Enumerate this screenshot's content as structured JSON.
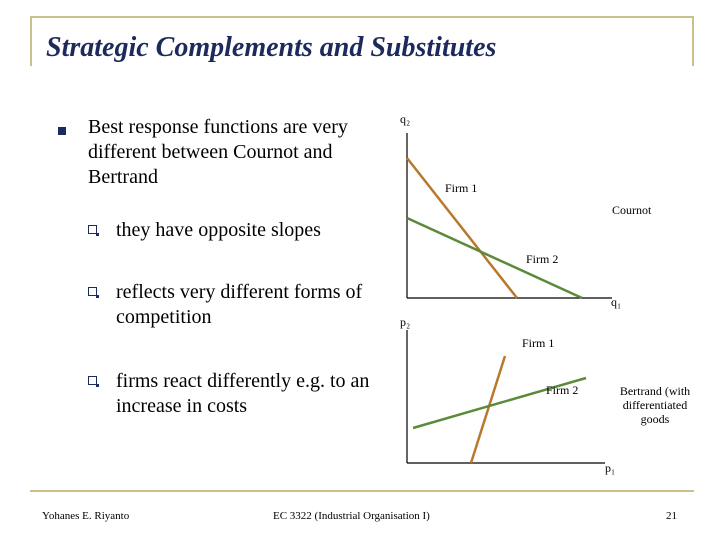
{
  "title": "Strategic Complements and Substitutes",
  "main_bullet": "Best response functions are very different between Cournot and Bertrand",
  "sub_bullets": [
    "they have opposite slopes",
    "reflects very different forms of competition",
    "firms react differently e.g. to an increase in costs"
  ],
  "diagram_top": {
    "y_axis_label": "q₂",
    "x_axis_label": "q₁",
    "firm1_label": "Firm 1",
    "firm2_label": "Firm 2",
    "model_label": "Cournot"
  },
  "diagram_bottom": {
    "y_axis_label": "p₂",
    "x_axis_label": "p₁",
    "firm1_label": "Firm 1",
    "firm2_label": "Firm 2",
    "model_label": "Bertrand (with differentiated goods"
  },
  "colors": {
    "title": "#1d2a5c",
    "firm1_line": "#b8792c",
    "firm2_line": "#5a8a3a",
    "frame": "#c9c08a"
  },
  "footer": {
    "author": "Yohanes E. Riyanto",
    "course": "EC 3322 (Industrial Organisation I)",
    "page": "21"
  }
}
